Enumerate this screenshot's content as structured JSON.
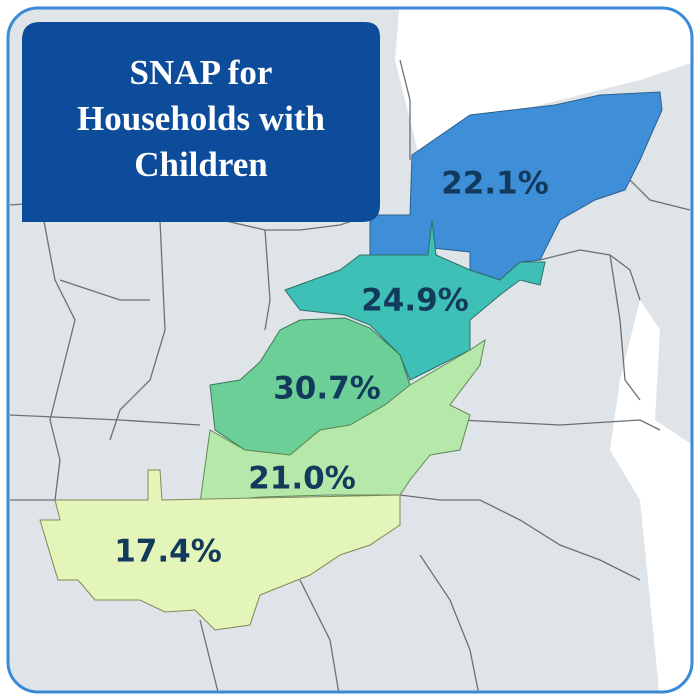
{
  "title_lines": [
    "SNAP for",
    "Households with",
    "Children"
  ],
  "regions": [
    {
      "label": "22.1%"
    },
    {
      "label": "24.9%"
    },
    {
      "label": "30.7%"
    },
    {
      "label": "21.0%"
    },
    {
      "label": "17.4%"
    }
  ]
}
